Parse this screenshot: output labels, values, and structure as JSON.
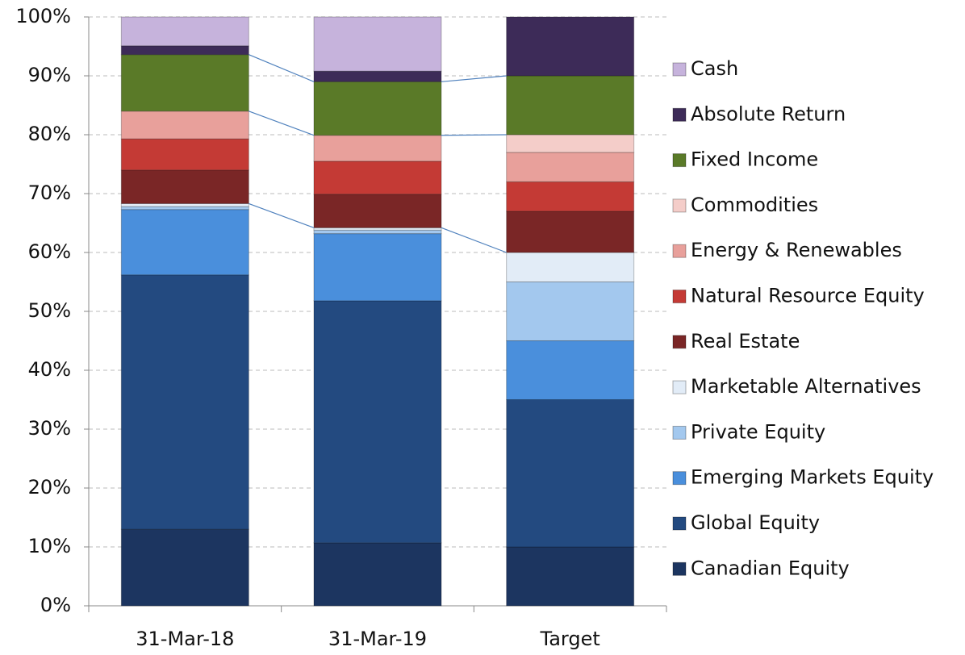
{
  "chart_data": {
    "type": "stacked_bar",
    "categories": [
      "31-Mar-18",
      "31-Mar-19",
      "Target"
    ],
    "series": [
      {
        "name": "Canadian Equity",
        "color": "#1c3560",
        "values": [
          13.0,
          10.7,
          10
        ]
      },
      {
        "name": "Global Equity",
        "color": "#234a80",
        "values": [
          43.2,
          41.1,
          25
        ]
      },
      {
        "name": "Emerging Markets Equity",
        "color": "#4a8fdc",
        "values": [
          11.1,
          11.4,
          10
        ]
      },
      {
        "name": "Private Equity",
        "color": "#a3c8ee",
        "values": [
          0.5,
          0.6,
          10
        ]
      },
      {
        "name": "Marketable Alternatives",
        "color": "#e2ecf7",
        "values": [
          0.5,
          0.4,
          5
        ]
      },
      {
        "name": "Real Estate",
        "color": "#7a2626",
        "values": [
          5.7,
          5.7,
          7
        ]
      },
      {
        "name": "Natural Resource Equity",
        "color": "#c43a35",
        "values": [
          5.3,
          5.6,
          5
        ]
      },
      {
        "name": "Energy & Renewables",
        "color": "#e8a09b",
        "values": [
          4.7,
          4.4,
          5
        ]
      },
      {
        "name": "Commodities",
        "color": "#f4cdc9",
        "values": [
          0,
          0,
          3
        ]
      },
      {
        "name": "Fixed Income",
        "color": "#5a7a28",
        "values": [
          9.6,
          9.1,
          10
        ]
      },
      {
        "name": "Absolute Return",
        "color": "#3d2b58",
        "values": [
          1.5,
          1.8,
          10
        ]
      },
      {
        "name": "Cash",
        "color": "#c6b3dc",
        "values": [
          4.9,
          9.2,
          0
        ]
      }
    ],
    "ylim": [
      0,
      100
    ],
    "yticks": [
      {
        "value": 0,
        "label": "0%"
      },
      {
        "value": 10,
        "label": "10%"
      },
      {
        "value": 20,
        "label": "20%"
      },
      {
        "value": 30,
        "label": "30%"
      },
      {
        "value": 40,
        "label": "40%"
      },
      {
        "value": 50,
        "label": "50%"
      },
      {
        "value": 60,
        "label": "60%"
      },
      {
        "value": 70,
        "label": "70%"
      },
      {
        "value": 80,
        "label": "80%"
      },
      {
        "value": 90,
        "label": "90%"
      },
      {
        "value": 100,
        "label": "100%"
      }
    ],
    "grid": true,
    "legend": "right"
  }
}
